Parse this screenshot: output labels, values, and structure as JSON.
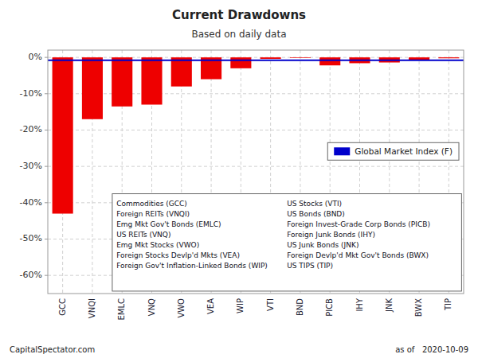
{
  "chart_data": {
    "type": "bar",
    "title": "Current Drawdowns",
    "subtitle": "Based on daily data",
    "categories": [
      "GCC",
      "VNQI",
      "EMLC",
      "VNQ",
      "VWO",
      "VEA",
      "WIP",
      "VTI",
      "BND",
      "PICB",
      "IHY",
      "JNK",
      "BWX",
      "TIP"
    ],
    "values": [
      -43.0,
      -17.0,
      -13.5,
      -13.0,
      -8.0,
      -6.0,
      -3.0,
      -0.4,
      -0.15,
      -2.2,
      -1.6,
      -1.4,
      -0.7,
      -0.25
    ],
    "color": "#ee0000",
    "reference_line": {
      "name": "Global Market Index (F)",
      "value": -0.8,
      "color": "#0000cc"
    },
    "ylim": [
      -65,
      2
    ],
    "yticks": [
      {
        "value": 0,
        "label": "0%"
      },
      {
        "value": -10,
        "label": "-10%"
      },
      {
        "value": -20,
        "label": "-20%"
      },
      {
        "value": -30,
        "label": "-30%"
      },
      {
        "value": -40,
        "label": "-40%"
      },
      {
        "value": -50,
        "label": "-50%"
      },
      {
        "value": -60,
        "label": "-60%"
      }
    ],
    "grid": true,
    "legend": "upper right",
    "annotations": [
      [
        "Commodities (GCC)",
        "Foreign REITs (VNQI)",
        "Emg Mkt Gov't Bonds (EMLC)",
        "US REITs (VNQ)",
        "Emg Mkt Stocks (VWO)",
        "Foreign Stocks Devlp'd Mkts (VEA)",
        "Foreign Gov't Inflation-Linked Bonds (WIP)"
      ],
      [
        "US Stocks (VTI)",
        "US Bonds (BND)",
        "Foreign Invest-Grade Corp Bonds (PICB)",
        "Foreign Junk Bonds (IHY)",
        "US Junk Bonds (JNK)",
        "Foreign Devlp'd Mkt Gov't Bonds (BWX)",
        "US TIPS (TIP)"
      ]
    ],
    "footer": [
      "CapitalSpectator.com",
      "as of   2020-10-09"
    ]
  }
}
